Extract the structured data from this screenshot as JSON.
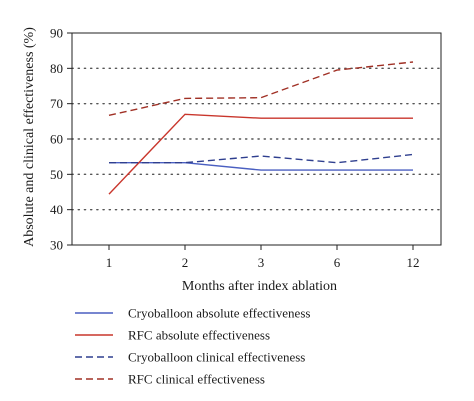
{
  "chart_data": {
    "type": "line",
    "xlabel": "Months after index ablation",
    "ylabel": "Absolute and clinical effectiveness (%)",
    "categories": [
      "1",
      "2",
      "3",
      "6",
      "12"
    ],
    "ylim": [
      30,
      90
    ],
    "yticks": [
      30,
      40,
      50,
      60,
      70,
      80,
      90
    ],
    "grid": "horizontal dotted",
    "legend_position": "bottom",
    "series": [
      {
        "name": "Cryoballoon absolute effectiveness",
        "values": [
          53.3,
          53.3,
          51.2,
          51.2,
          51.2
        ],
        "color": "#4a5fc1",
        "dash": "solid"
      },
      {
        "name": "RFC absolute effectiveness",
        "values": [
          44.4,
          67.0,
          65.9,
          65.9,
          65.9
        ],
        "color": "#c9362c",
        "dash": "solid"
      },
      {
        "name": "Cryoballoon clinical effectiveness",
        "values": [
          53.3,
          53.3,
          55.2,
          53.3,
          55.6
        ],
        "color": "#2f3f8f",
        "dash": "dashed"
      },
      {
        "name": "RFC clinical effectiveness",
        "values": [
          66.7,
          71.5,
          71.7,
          79.5,
          81.8
        ],
        "color": "#a03025",
        "dash": "dashed"
      }
    ]
  }
}
